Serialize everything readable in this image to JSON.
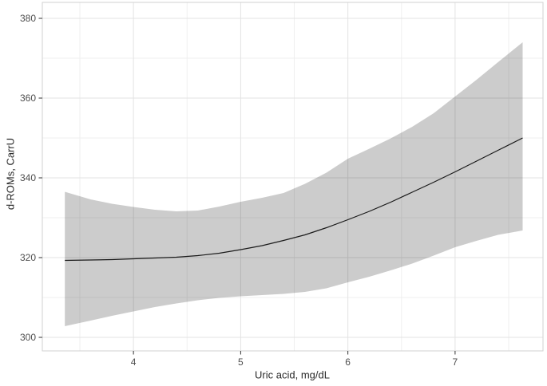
{
  "chart_data": {
    "type": "line",
    "title": "",
    "xlabel": "Uric acid, mg/dL",
    "ylabel": "d-ROMs, CarrU",
    "xlim": [
      3.15,
      7.82
    ],
    "ylim": [
      296.6,
      384.0
    ],
    "x_ticks": [
      4,
      5,
      6,
      7
    ],
    "y_ticks": [
      300,
      320,
      340,
      360,
      380
    ],
    "x_minor_ticks": [
      3.5,
      4.5,
      5.5,
      6.5,
      7.5
    ],
    "y_minor_ticks": [
      310,
      330,
      350,
      370
    ],
    "grid": "on",
    "legend": "none",
    "series": [
      {
        "name": "smoothed-fit",
        "x": [
          3.36,
          3.6,
          3.8,
          4.0,
          4.2,
          4.4,
          4.6,
          4.8,
          5.0,
          5.2,
          5.4,
          5.6,
          5.8,
          6.0,
          6.2,
          6.4,
          6.6,
          6.8,
          7.0,
          7.2,
          7.4,
          7.63
        ],
        "y": [
          319.3,
          319.4,
          319.5,
          319.7,
          319.9,
          320.1,
          320.5,
          321.1,
          322.0,
          323.0,
          324.3,
          325.7,
          327.5,
          329.5,
          331.6,
          333.9,
          336.4,
          338.9,
          341.5,
          344.2,
          346.9,
          350.0
        ]
      }
    ],
    "band": {
      "name": "confidence-band",
      "x": [
        3.36,
        3.6,
        3.8,
        4.0,
        4.2,
        4.4,
        4.6,
        4.8,
        5.0,
        5.2,
        5.4,
        5.6,
        5.8,
        6.0,
        6.2,
        6.4,
        6.6,
        6.8,
        7.0,
        7.2,
        7.4,
        7.63
      ],
      "upper": [
        336.5,
        334.6,
        333.5,
        332.7,
        332.0,
        331.6,
        331.8,
        332.8,
        334.0,
        335.0,
        336.2,
        338.5,
        341.3,
        344.8,
        347.3,
        349.9,
        352.8,
        356.2,
        360.4,
        364.6,
        369.0,
        374.0
      ],
      "lower": [
        302.8,
        304.2,
        305.4,
        306.5,
        307.6,
        308.5,
        309.3,
        309.9,
        310.3,
        310.6,
        310.9,
        311.4,
        312.3,
        313.8,
        315.2,
        316.8,
        318.5,
        320.5,
        322.6,
        324.2,
        325.7,
        326.8
      ]
    },
    "colors": {
      "line": "#1a1a1a",
      "band": "rgba(0,0,0,0.2)",
      "grid_major": "#e3e3e3",
      "grid_minor": "#efefef",
      "panel_border": "#d2d2d2",
      "tick": "#333333",
      "tick_label": "#4d4d4d",
      "background": "#ffffff"
    }
  }
}
